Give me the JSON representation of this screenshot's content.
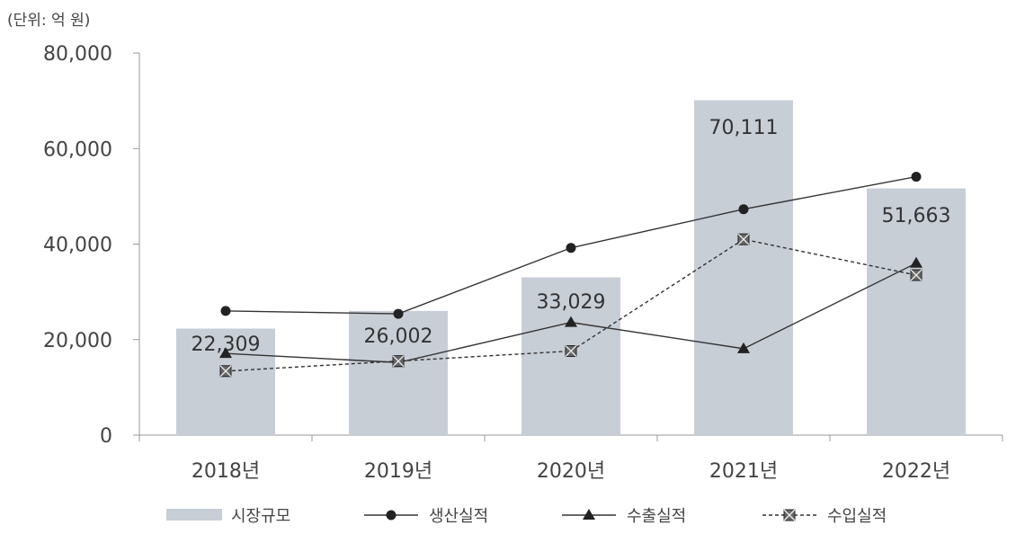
{
  "unit_label": "(단위: 억 원)",
  "chart_data": {
    "type": "bar",
    "categories": [
      "2018년",
      "2019년",
      "2020년",
      "2021년",
      "2022년"
    ],
    "ylim": [
      0,
      80000
    ],
    "yticks": [
      "0",
      "20,000",
      "40,000",
      "60,000",
      "80,000"
    ],
    "grid": false,
    "legend_position": "bottom",
    "series": [
      {
        "name": "시장규모",
        "kind": "bar",
        "values": [
          22309,
          26002,
          33029,
          70111,
          51663
        ],
        "labels": [
          "22,309",
          "26,002",
          "33,029",
          "70,111",
          "51,663"
        ],
        "color": "#c8ced6"
      },
      {
        "name": "생산실적",
        "kind": "line",
        "marker": "circle",
        "dash": "solid",
        "values": [
          26000,
          25400,
          39200,
          47300,
          54100
        ],
        "color": "#333333"
      },
      {
        "name": "수출실적",
        "kind": "line",
        "marker": "triangle",
        "dash": "solid",
        "values": [
          17100,
          15200,
          23600,
          18100,
          36000
        ],
        "color": "#333333"
      },
      {
        "name": "수입실적",
        "kind": "line",
        "marker": "crossbox",
        "dash": "dashed",
        "values": [
          13400,
          15500,
          17600,
          41000,
          33500
        ],
        "color": "#333333"
      }
    ]
  }
}
